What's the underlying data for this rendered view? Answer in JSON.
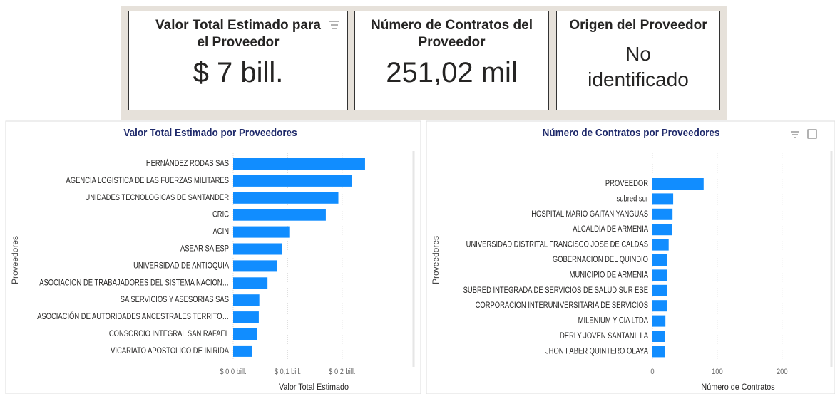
{
  "cards": [
    {
      "title": "Valor Total Estimado para el Proveedor",
      "value": "$ 7 bill."
    },
    {
      "title": "Número de Contratos del Proveedor",
      "value": "251,02 mil"
    },
    {
      "title": "Origen del Proveedor",
      "value": "No identificado"
    }
  ],
  "chart_data": [
    {
      "type": "barh",
      "title": "Valor Total Estimado por Proveedores",
      "x_label": "Valor Total Estimado",
      "y_label": "Proveedores",
      "color": "#118DFF",
      "grid": true,
      "categories": [
        "HERNÁNDEZ RODAS SAS",
        "AGENCIA LOGISTICA DE LAS FUERZAS MILITARES",
        "UNIDADES TECNOLOGICAS DE SANTANDER",
        "CRIC",
        "ACIN",
        "ASEAR SA ESP",
        "UNIVERSIDAD DE ANTIOQUIA",
        "ASOCIACION DE TRABAJADORES DEL SISTEMA NACION…",
        "SA SERVICIOS Y ASESORIAS SAS",
        "ASOCIACIÓN DE AUTORIDADES ANCESTRALES TERRITO…",
        "CONSORCIO INTEGRAL SAN RAFAEL",
        "VICARIATO APOSTOLICO DE INIRIDA"
      ],
      "values": [
        0.242,
        0.218,
        0.193,
        0.17,
        0.103,
        0.089,
        0.08,
        0.063,
        0.048,
        0.047,
        0.044,
        0.035
      ],
      "xlim": [
        0,
        0.28
      ],
      "xticks": [
        {
          "value": 0,
          "label": "$ 0,0 bill."
        },
        {
          "value": 0.1,
          "label": "$ 0,1 bill."
        },
        {
          "value": 0.2,
          "label": "$ 0,2 bill."
        }
      ]
    },
    {
      "type": "barh",
      "title": "Número de Contratos por Proveedores",
      "x_label": "Número de Contratos",
      "y_label": "Proveedores",
      "color": "#118DFF",
      "grid": true,
      "categories": [
        "PROVEEDOR",
        "subred sur",
        "HOSPITAL MARIO GAITAN YANGUAS",
        "ALCALDIA DE ARMENIA",
        "UNIVERSIDAD DISTRITAL FRANCISCO JOSE DE CALDAS",
        "GOBERNACION DEL QUINDIO",
        "MUNICIPIO DE ARMENIA",
        "SUBRED INTEGRADA DE SERVICIOS DE SALUD SUR ESE",
        "CORPORACION INTERUNIVERSITARIA DE SERVICIOS",
        "MILENIUM Y CIA LTDA",
        "DERLY JOVEN SANTANILLA",
        "JHON FABER QUINTERO OLAYA"
      ],
      "values": [
        79,
        32,
        31,
        30,
        25,
        23,
        23,
        22,
        22,
        20,
        19,
        19
      ],
      "xlim": [
        0,
        230
      ],
      "xticks": [
        0,
        100,
        200
      ]
    }
  ]
}
